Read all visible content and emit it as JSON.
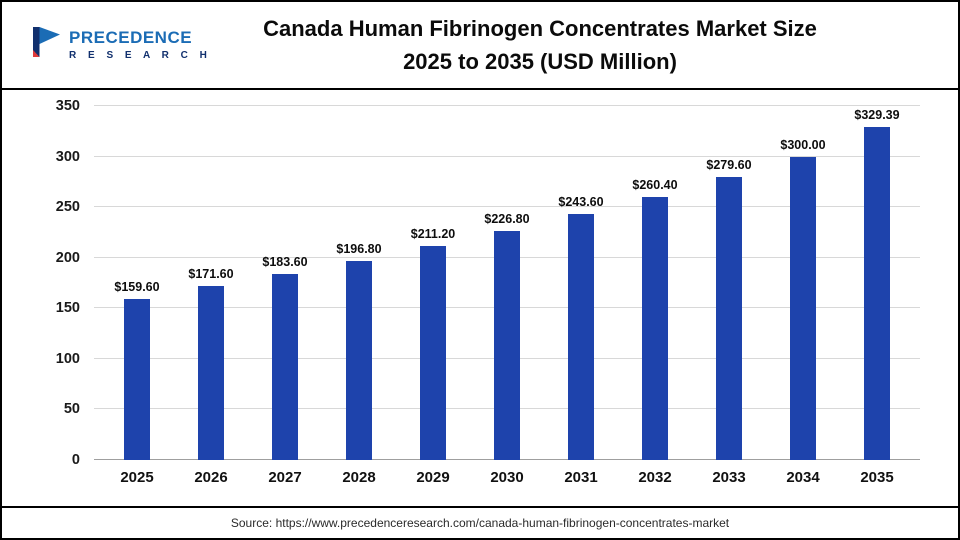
{
  "header": {
    "brand_line1": "PRECEDENCE",
    "brand_line2": "R E S E A R C H",
    "title_line1": "Canada Human Fibrinogen Concentrates Market Size",
    "title_line2": "2025 to 2035 (USD Million)"
  },
  "footer": {
    "source": "Source: https://www.precedenceresearch.com/canada-human-fibrinogen-concentrates-market"
  },
  "colors": {
    "bar": "#1e43ac",
    "brand_blue": "#1b6cb5",
    "brand_navy": "#11306e",
    "brand_red": "#e03a3a",
    "grid": "#d8d8d8"
  },
  "chart_data": {
    "type": "bar",
    "title": "Canada Human Fibrinogen Concentrates Market Size 2025 to 2035 (USD Million)",
    "categories": [
      "2025",
      "2026",
      "2027",
      "2028",
      "2029",
      "2030",
      "2031",
      "2032",
      "2033",
      "2034",
      "2035"
    ],
    "values": [
      159.6,
      171.6,
      183.6,
      196.8,
      211.2,
      226.8,
      243.6,
      260.4,
      279.6,
      300.0,
      329.39
    ],
    "value_labels": [
      "$159.60",
      "$171.60",
      "$183.60",
      "$196.80",
      "$211.20",
      "$226.80",
      "$243.60",
      "$260.40",
      "$279.60",
      "$300.00",
      "$329.39"
    ],
    "xlabel": "",
    "ylabel": "",
    "ylim": [
      0,
      350
    ],
    "yticks": [
      0,
      50,
      100,
      150,
      200,
      250,
      300,
      350
    ],
    "grid": true,
    "legend": false,
    "bar_color": "#1e43ac"
  }
}
